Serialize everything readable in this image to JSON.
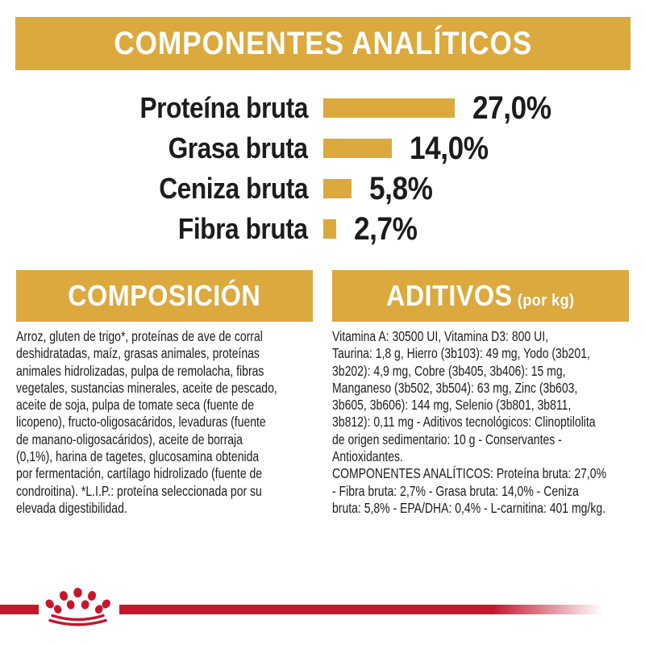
{
  "page": {
    "background": "#ffffff",
    "accent_gold": "#dca93f",
    "brand_red": "#c5162c",
    "text_color": "#1c1c1c"
  },
  "header": {
    "title": "COMPONENTES ANALÍTICOS"
  },
  "chart_data": {
    "type": "bar",
    "orientation": "horizontal",
    "title": "COMPONENTES ANALÍTICOS",
    "categories": [
      "Proteína bruta",
      "Grasa bruta",
      "Ceniza bruta",
      "Fibra bruta"
    ],
    "values": [
      27.0,
      14.0,
      5.8,
      2.7
    ],
    "value_labels": [
      "27,0%",
      "14,0%",
      "5,8%",
      "2,7%"
    ],
    "unit": "%",
    "xlim": [
      0,
      27
    ],
    "bar_color": "#dca93f",
    "grid": false,
    "legend": false
  },
  "sections": {
    "composicion": {
      "title": "COMPOSICIÓN",
      "body": "Arroz, gluten de trigo*, proteínas de ave de corral\ndeshidratadas, maíz, grasas animales, proteínas\nanimales hidrolizadas, pulpa de remolacha, fibras\nvegetales, sustancias minerales, aceite de pescado,\naceite de soja, pulpa de tomate seca (fuente de\nlicopeno), fructo-oligosacáridos, levaduras (fuente\nde manano-oligosacáridos), aceite de borraja\n(0,1%), harina de tagetes, glucosamina obtenida\npor fermentación, cartílago hidrolizado (fuente de\ncondroitina). *L.I.P.: proteína seleccionada por su\nelevada digestibilidad."
    },
    "aditivos": {
      "title": "ADITIVOS",
      "title_suffix": "(por kg)",
      "body": "Vitamina A: 30500 UI, Vitamina D3: 800 UI,\nTaurina: 1,8 g, Hierro (3b103): 49 mg, Yodo (3b201,\n3b202): 4,9 mg, Cobre (3b405, 3b406): 15 mg,\nManganeso (3b502, 3b504): 63 mg, Zinc (3b603,\n3b605, 3b606): 144 mg, Selenio (3b801, 3b811,\n3b812): 0,11 mg - Aditivos tecnológicos: Clinoptilolita\nde origen sedimentario: 10 g - Conservantes -\nAntioxidantes.\nCOMPONENTES ANALÍTICOS: Proteína bruta: 27,0%\n- Fibra bruta: 2,7% - Grasa bruta: 14,0% - Ceniza\nbruta: 5,8% - EPA/DHA: 0,4% - L-carnitina: 401 mg/kg."
    }
  },
  "footer": {
    "logo": "royal-canin-crown"
  }
}
